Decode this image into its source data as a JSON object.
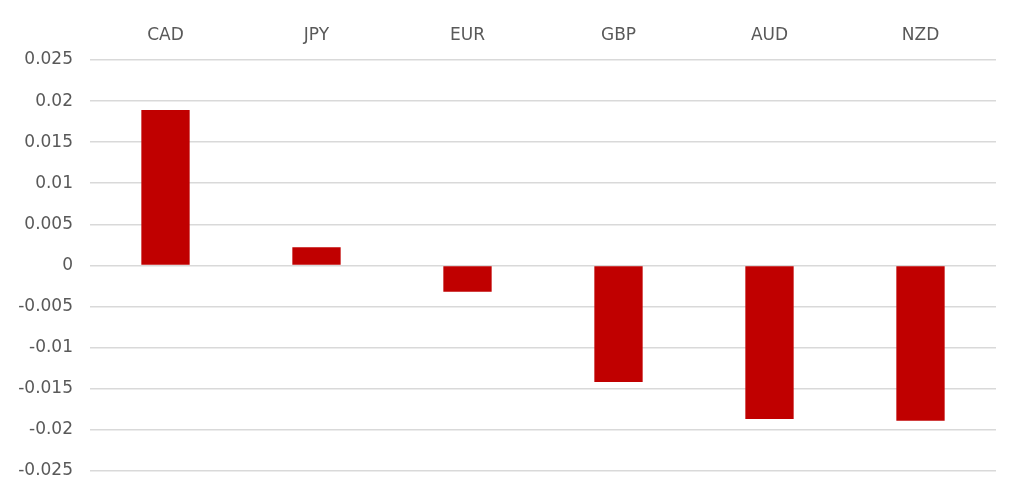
{
  "chart_data": {
    "type": "bar",
    "categories": [
      "CAD",
      "JPY",
      "EUR",
      "GBP",
      "AUD",
      "NZD"
    ],
    "values": [
      0.0189,
      0.0022,
      -0.0032,
      -0.0142,
      -0.0187,
      -0.0189
    ],
    "color": "#c00000",
    "ylim": [
      -0.025,
      0.025
    ],
    "yticks": [
      0.025,
      0.02,
      0.015,
      0.01,
      0.005,
      0,
      -0.005,
      -0.01,
      -0.015,
      -0.02,
      -0.025
    ],
    "grid": "y"
  }
}
